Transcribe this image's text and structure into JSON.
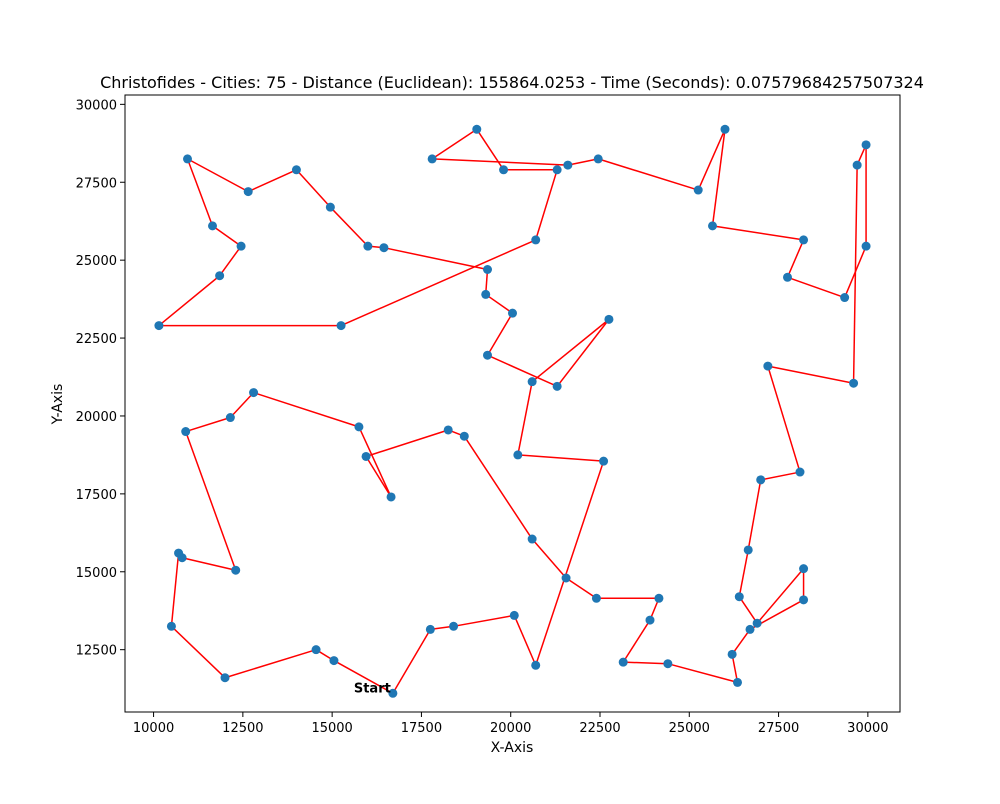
{
  "chart_data": {
    "type": "scatter",
    "title": "Christofides - Cities: 75 - Distance (Euclidean): 155864.0253 - Time (Seconds): 0.07579684257507324",
    "xlabel": "X-Axis",
    "ylabel": "Y-Axis",
    "xlim": [
      9200,
      30900
    ],
    "ylim": [
      10500,
      30300
    ],
    "xticks": [
      10000,
      12500,
      15000,
      17500,
      20000,
      22500,
      25000,
      27500,
      30000
    ],
    "yticks": [
      12500,
      15000,
      17500,
      20000,
      22500,
      25000,
      27500,
      30000
    ],
    "grid": false,
    "point_color": "#1f77b4",
    "route_color": "#ff0000",
    "start_label": "Start",
    "tour": [
      [
        16700,
        11100
      ],
      [
        17750,
        13150
      ],
      [
        18400,
        13250
      ],
      [
        20100,
        13600
      ],
      [
        20700,
        12000
      ],
      [
        22600,
        18550
      ],
      [
        20200,
        18750
      ],
      [
        20600,
        21100
      ],
      [
        22750,
        23100
      ],
      [
        21300,
        20950
      ],
      [
        19350,
        21950
      ],
      [
        20050,
        23300
      ],
      [
        19300,
        23900
      ],
      [
        19350,
        24700
      ],
      [
        16450,
        25400
      ],
      [
        16000,
        25450
      ],
      [
        14950,
        26700
      ],
      [
        14000,
        27900
      ],
      [
        12650,
        27200
      ],
      [
        10950,
        28250
      ],
      [
        11650,
        26100
      ],
      [
        12450,
        25450
      ],
      [
        11850,
        24500
      ],
      [
        10150,
        22900
      ],
      [
        15250,
        22900
      ],
      [
        20700,
        25650
      ],
      [
        21300,
        27900
      ],
      [
        19800,
        27900
      ],
      [
        19050,
        29200
      ],
      [
        17800,
        28250
      ],
      [
        21600,
        28050
      ],
      [
        22450,
        28250
      ],
      [
        25250,
        27250
      ],
      [
        26000,
        29200
      ],
      [
        25650,
        26100
      ],
      [
        28200,
        25650
      ],
      [
        27750,
        24450
      ],
      [
        29350,
        23800
      ],
      [
        29950,
        25450
      ],
      [
        29950,
        28700
      ],
      [
        29700,
        28050
      ],
      [
        29600,
        21050
      ],
      [
        27200,
        21600
      ],
      [
        28100,
        18200
      ],
      [
        27000,
        17950
      ],
      [
        26650,
        15700
      ],
      [
        26400,
        14200
      ],
      [
        26900,
        13350
      ],
      [
        28200,
        15100
      ],
      [
        28200,
        14100
      ],
      [
        26700,
        13150
      ],
      [
        26200,
        12350
      ],
      [
        26350,
        11450
      ],
      [
        24400,
        12050
      ],
      [
        23150,
        12100
      ],
      [
        23900,
        13450
      ],
      [
        24150,
        14150
      ],
      [
        22400,
        14150
      ],
      [
        21550,
        14800
      ],
      [
        20600,
        16050
      ],
      [
        18700,
        19350
      ],
      [
        18250,
        19550
      ],
      [
        15950,
        18700
      ],
      [
        16650,
        17400
      ],
      [
        15750,
        19650
      ],
      [
        12800,
        20750
      ],
      [
        12150,
        19950
      ],
      [
        10900,
        19500
      ],
      [
        12300,
        15050
      ],
      [
        10800,
        15450
      ],
      [
        10700,
        15600
      ],
      [
        10500,
        13250
      ],
      [
        12000,
        11600
      ],
      [
        14550,
        12500
      ],
      [
        15050,
        12150
      ]
    ]
  }
}
